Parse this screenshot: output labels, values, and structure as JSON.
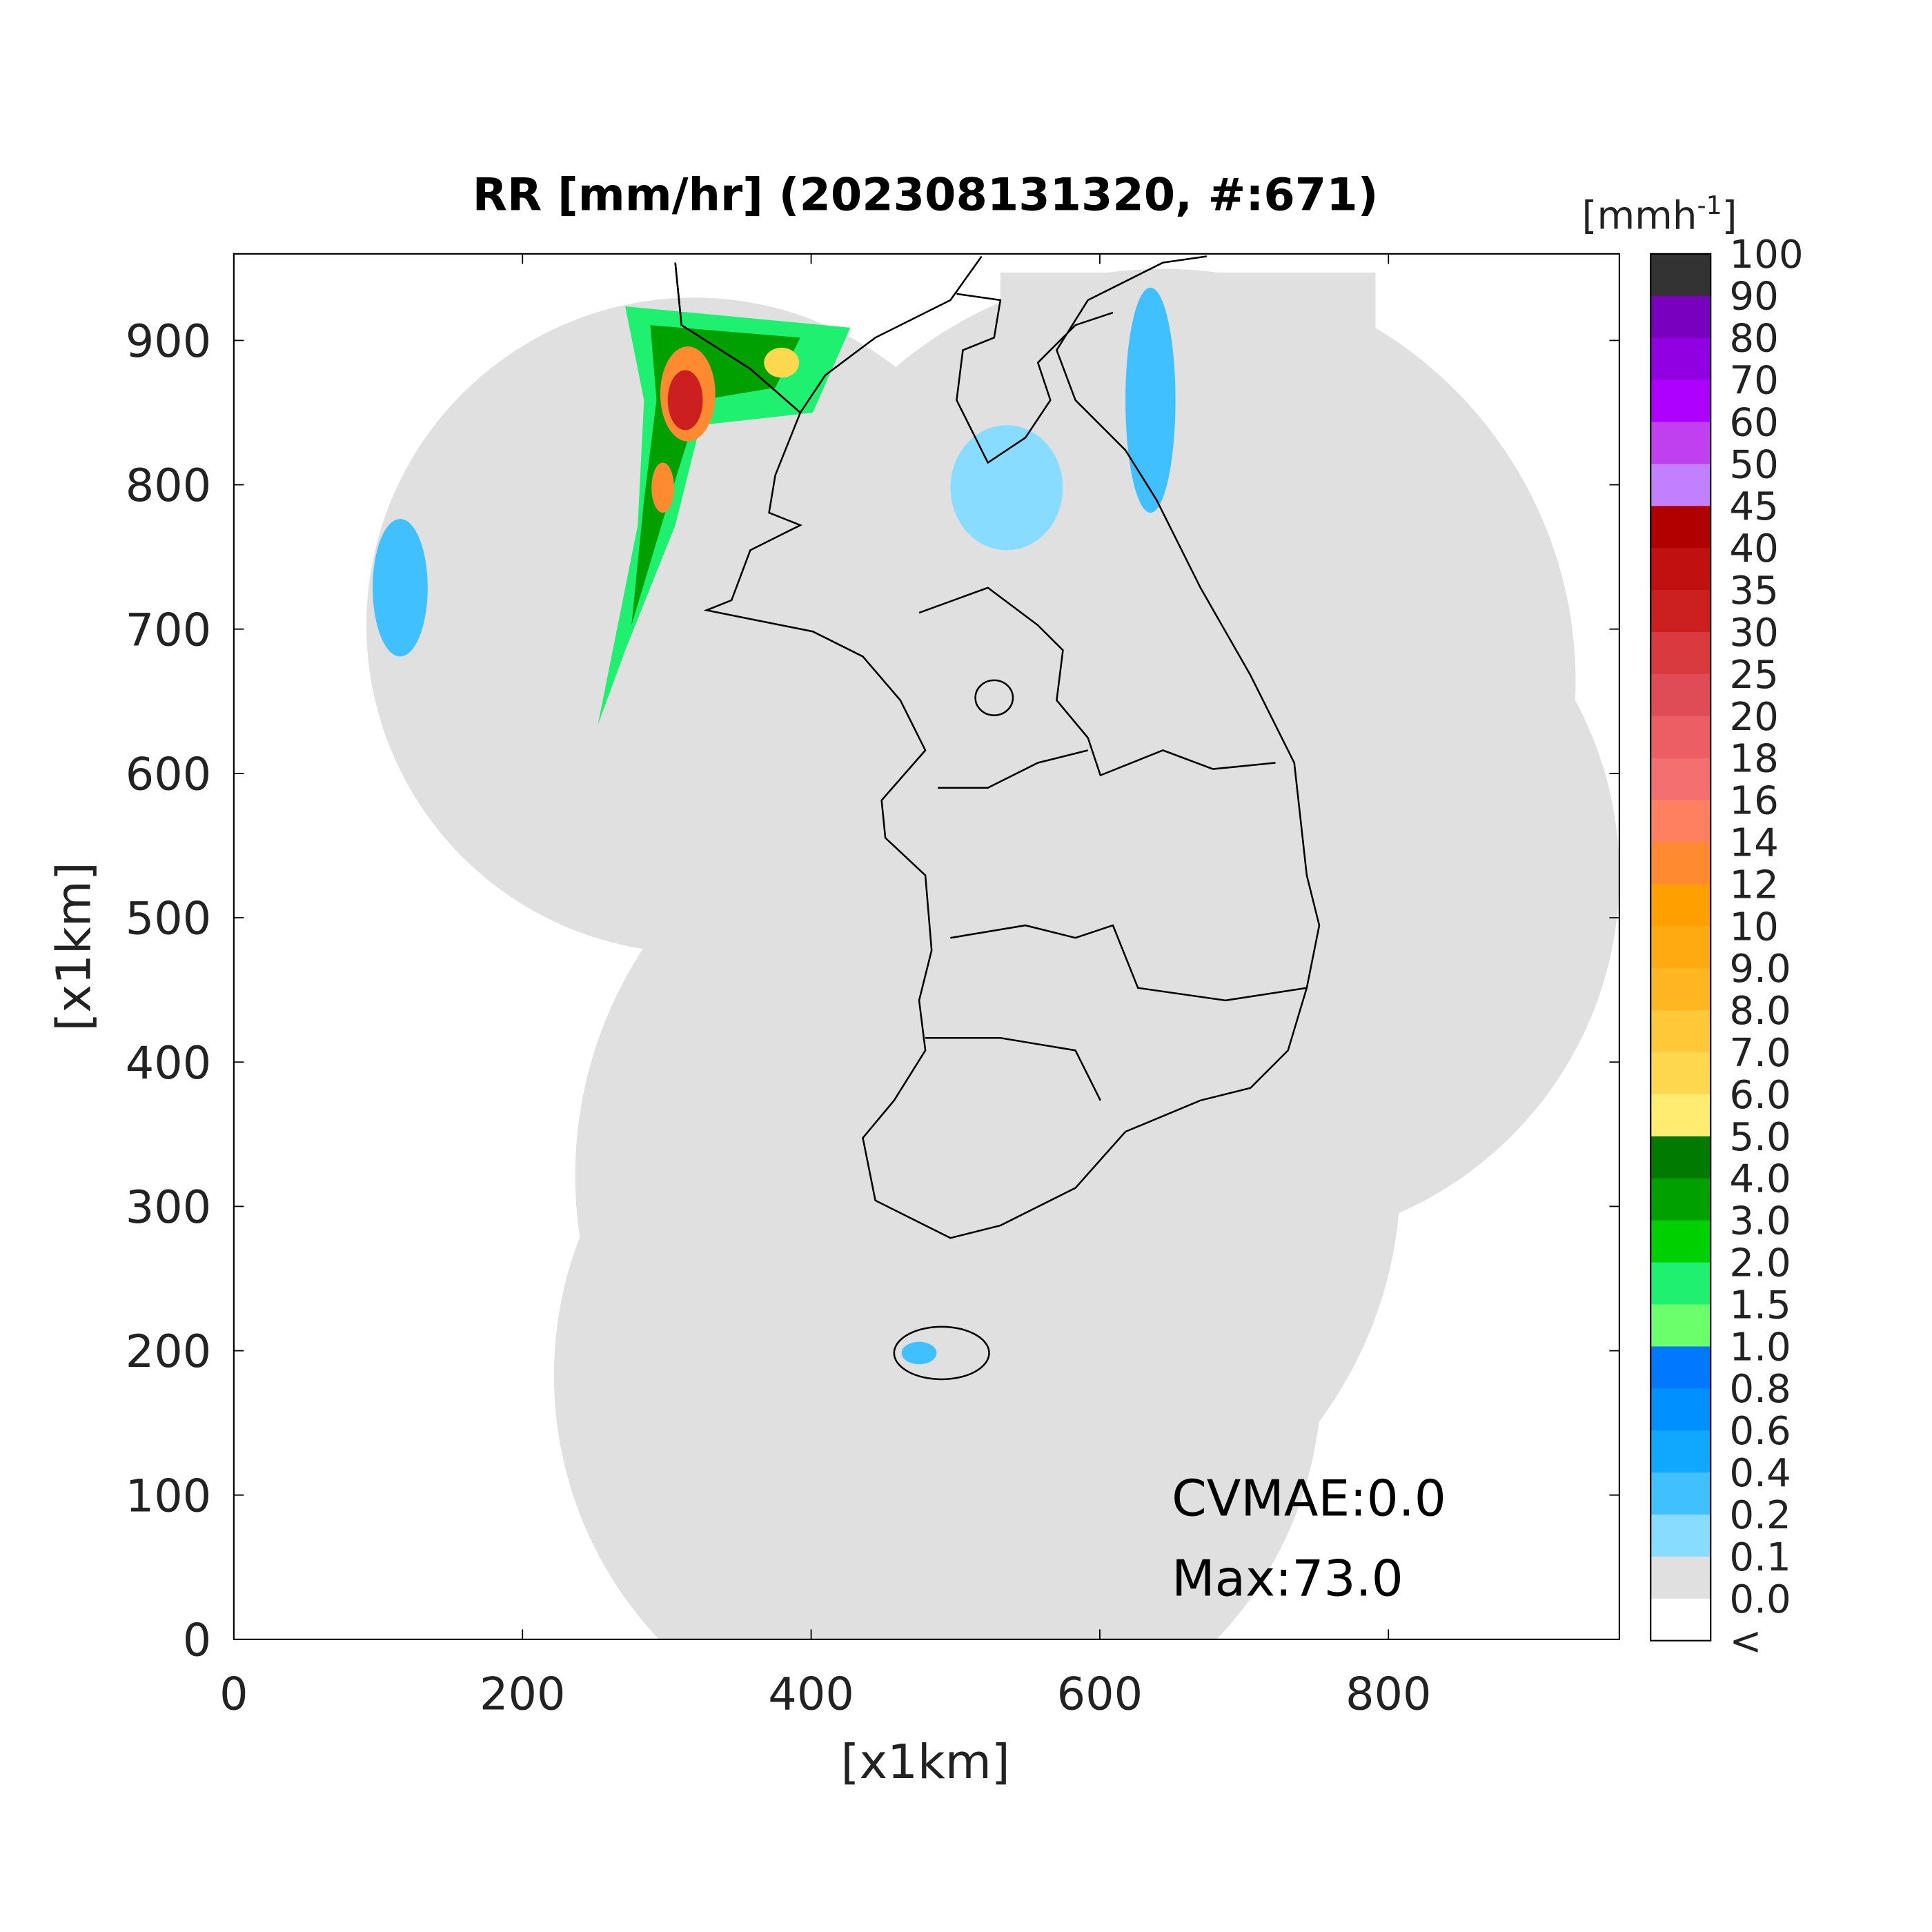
{
  "chart_data": {
    "type": "radar-map",
    "title": "RR [mm/hr] (202308131320, #:671)",
    "xlabel": "[x1km]",
    "ylabel": "[x1km]",
    "xlim": [
      0,
      960
    ],
    "ylim": [
      0,
      960
    ],
    "xticks": [
      0,
      200,
      400,
      600,
      800
    ],
    "yticks": [
      0,
      100,
      200,
      300,
      400,
      500,
      600,
      700,
      800,
      900
    ],
    "annotations": [
      "CVMAE:0.0",
      "Max:73.0"
    ],
    "colorbar": {
      "unit_base": "[mmh",
      "unit_power": "-1",
      "unit_end": "]",
      "labels": [
        "100",
        "90",
        "80",
        "70",
        "60",
        "50",
        "45",
        "40",
        "35",
        "30",
        "25",
        "20",
        "18",
        "16",
        "14",
        "12",
        "10",
        "9.0",
        "8.0",
        "7.0",
        "6.0",
        "5.0",
        "4.0",
        "3.0",
        "2.0",
        "1.5",
        "1.0",
        "0.8",
        "0.6",
        "0.4",
        "0.2",
        "0.1",
        "0.0",
        "<"
      ],
      "colors": [
        "#333333",
        "#7a00c0",
        "#9000e0",
        "#ad00ff",
        "#c040f0",
        "#c080ff",
        "#b00000",
        "#c01010",
        "#cc2020",
        "#d83a40",
        "#e04c55",
        "#ea5e64",
        "#f47070",
        "#ff8060",
        "#ff8a30",
        "#ffa000",
        "#ffaa10",
        "#ffb620",
        "#ffc838",
        "#ffd850",
        "#ffec70",
        "#007a00",
        "#00a000",
        "#00d000",
        "#20f070",
        "#6cff6c",
        "#0078ff",
        "#0090ff",
        "#10a8ff",
        "#40c0ff",
        "#88dcff",
        "#e0e0e0",
        "#ffffff"
      ]
    }
  }
}
